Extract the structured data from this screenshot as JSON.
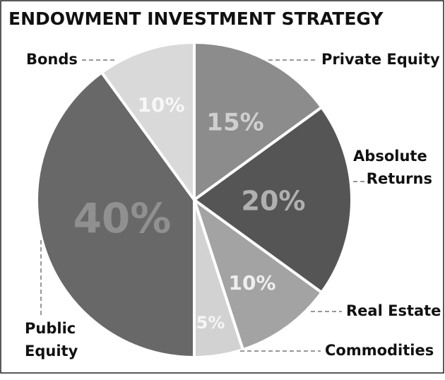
{
  "chart_data": {
    "type": "pie",
    "title": "ENDOWMENT INVESTMENT STRATEGY",
    "categories": [
      "Private Equity",
      "Absolute Returns",
      "Real Estate",
      "Commodities",
      "Public Equity",
      "Bonds"
    ],
    "values": [
      15,
      20,
      10,
      5,
      40,
      10
    ],
    "value_labels": [
      "15%",
      "20%",
      "10%",
      "5%",
      "40%",
      "10%"
    ],
    "colors": [
      "#8c8c8c",
      "#555555",
      "#a3a3a3",
      "#d2d2d2",
      "#686868",
      "#d9d9d9"
    ]
  }
}
